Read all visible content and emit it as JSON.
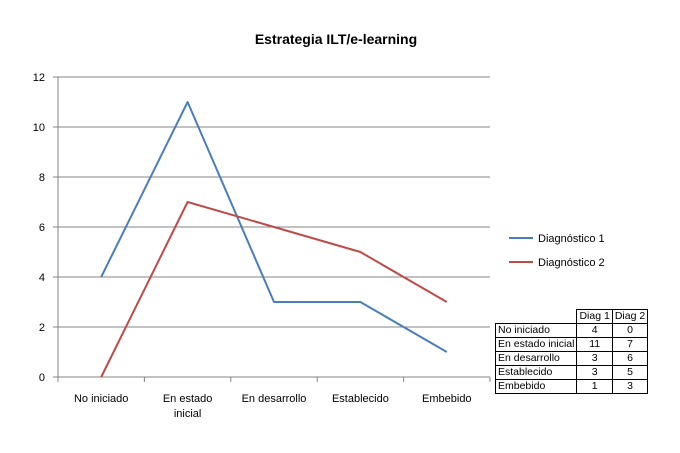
{
  "chart_data": {
    "type": "line",
    "title": "Estrategia ILT/e-learning",
    "xlabel": "",
    "ylabel": "",
    "categories": [
      "No iniciado",
      "En estado inicial",
      "En desarrollo",
      "Establecido",
      "Embebido"
    ],
    "category_lines": [
      [
        "No iniciado"
      ],
      [
        "En estado",
        "inicial"
      ],
      [
        "En desarrollo"
      ],
      [
        "Establecido"
      ],
      [
        "Embebido"
      ]
    ],
    "ylim": [
      0,
      12
    ],
    "yticks": [
      0,
      2,
      4,
      6,
      8,
      10,
      12
    ],
    "grid": true,
    "legend_position": "right",
    "series": [
      {
        "name": "Diagnóstico 1",
        "values": [
          4,
          11,
          3,
          3,
          1
        ],
        "color": "#4a7ebb"
      },
      {
        "name": "Diagnóstico 2",
        "values": [
          0,
          7,
          6,
          5,
          3
        ],
        "color": "#be4b48"
      }
    ]
  },
  "table": {
    "headers": [
      "Diag 1",
      "Diag 2"
    ],
    "rows": [
      {
        "label": "No iniciado",
        "d1": "4",
        "d2": "0"
      },
      {
        "label": "En estado inicial",
        "d1": "11",
        "d2": "7"
      },
      {
        "label": "En desarrollo",
        "d1": "3",
        "d2": "6"
      },
      {
        "label": "Establecido",
        "d1": "3",
        "d2": "5"
      },
      {
        "label": "Embebido",
        "d1": "1",
        "d2": "3"
      }
    ]
  }
}
